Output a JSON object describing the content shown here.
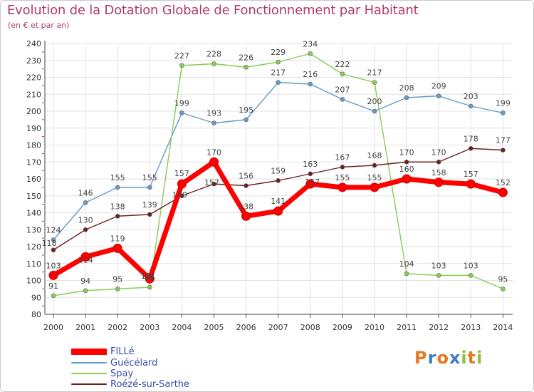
{
  "chart_data": {
    "type": "line",
    "title": "Evolution de la Dotation Globale de Fonctionnement par Habitant",
    "subtitle": "(en € et par an)",
    "x": [
      "2000",
      "2001",
      "2002",
      "2003",
      "2004",
      "2005",
      "2006",
      "2007",
      "2008",
      "2009",
      "2010",
      "2011",
      "2012",
      "2013",
      "2014"
    ],
    "ylim": [
      80,
      240
    ],
    "yticks": [
      80,
      90,
      100,
      110,
      120,
      130,
      140,
      150,
      160,
      170,
      180,
      190,
      200,
      210,
      220,
      230,
      240
    ],
    "grid": true,
    "legend_position": "bottom-left",
    "series": [
      {
        "name": "FILLé",
        "color": "#ff0000",
        "values": [
          103,
          114,
          119,
          101,
          157,
          170,
          138,
          141,
          157,
          155,
          155,
          160,
          158,
          157,
          152
        ]
      },
      {
        "name": "Guécélard",
        "color": "#6699cc",
        "values": [
          124,
          146,
          155,
          155,
          199,
          193,
          195,
          217,
          216,
          207,
          200,
          208,
          209,
          203,
          199
        ]
      },
      {
        "name": "Spay",
        "color": "#88cc55",
        "values": [
          91,
          94,
          95,
          96,
          227,
          228,
          226,
          229,
          234,
          222,
          217,
          104,
          103,
          103,
          95
        ]
      },
      {
        "name": "Roézé-sur-Sarthe",
        "color": "#6b2020",
        "values": [
          118,
          130,
          138,
          139,
          150,
          157,
          156,
          159,
          163,
          167,
          168,
          170,
          170,
          178,
          177
        ]
      }
    ]
  },
  "logo": {
    "letters": [
      "P",
      "r",
      "o",
      "x",
      "i",
      "t",
      "i"
    ],
    "colors": [
      "#e87722",
      "#3a7fc2",
      "#e87722",
      "#3a7fc2",
      "#8cbf3f",
      "#e87722",
      "#8cbf3f"
    ]
  }
}
